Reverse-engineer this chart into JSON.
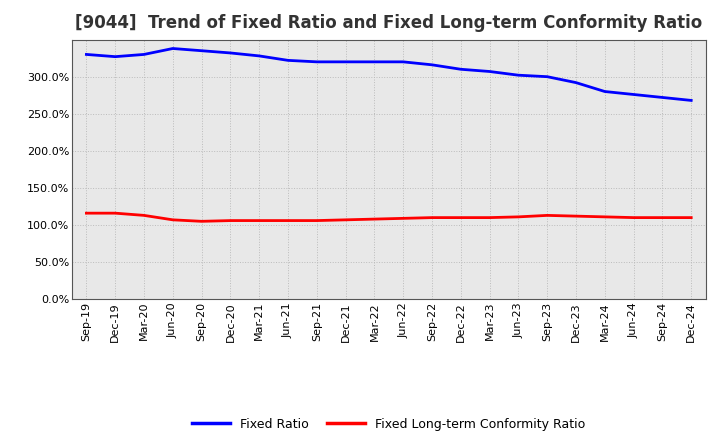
{
  "title": "[9044]  Trend of Fixed Ratio and Fixed Long-term Conformity Ratio",
  "x_labels": [
    "Sep-19",
    "Dec-19",
    "Mar-20",
    "Jun-20",
    "Sep-20",
    "Dec-20",
    "Mar-21",
    "Jun-21",
    "Sep-21",
    "Dec-21",
    "Mar-22",
    "Jun-22",
    "Sep-22",
    "Dec-22",
    "Mar-23",
    "Jun-23",
    "Sep-23",
    "Dec-23",
    "Mar-24",
    "Jun-24",
    "Sep-24",
    "Dec-24"
  ],
  "fixed_ratio": [
    3.3,
    3.27,
    3.3,
    3.38,
    3.35,
    3.32,
    3.28,
    3.22,
    3.2,
    3.2,
    3.2,
    3.2,
    3.16,
    3.1,
    3.07,
    3.02,
    3.0,
    2.92,
    2.8,
    2.76,
    2.72,
    2.68
  ],
  "fixed_lt_ratio": [
    1.16,
    1.16,
    1.13,
    1.07,
    1.05,
    1.06,
    1.06,
    1.06,
    1.06,
    1.07,
    1.08,
    1.09,
    1.1,
    1.1,
    1.1,
    1.11,
    1.13,
    1.12,
    1.11,
    1.1,
    1.1,
    1.1
  ],
  "fixed_ratio_color": "#0000FF",
  "fixed_lt_ratio_color": "#FF0000",
  "background_color": "#FFFFFF",
  "plot_bg_color": "#E8E8E8",
  "grid_color": "#BBBBBB",
  "ylim": [
    0.0,
    3.5
  ],
  "yticks": [
    0.0,
    0.5,
    1.0,
    1.5,
    2.0,
    2.5,
    3.0
  ],
  "legend_fixed_ratio": "Fixed Ratio",
  "legend_fixed_lt_ratio": "Fixed Long-term Conformity Ratio",
  "title_fontsize": 12,
  "tick_fontsize": 8,
  "legend_fontsize": 9,
  "line_width": 2.0
}
